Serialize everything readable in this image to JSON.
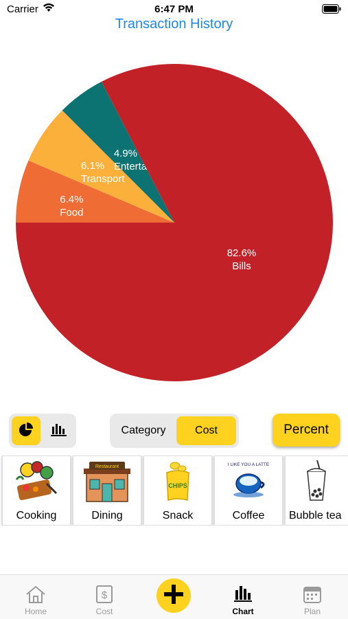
{
  "status": {
    "carrier": "Carrier",
    "time": "6:47 PM"
  },
  "header": {
    "title": "Transaction History"
  },
  "chart_data": {
    "type": "pie",
    "slices": [
      {
        "label": "Food",
        "value": 6.4,
        "display": "6.4%",
        "color": "#ef6c35"
      },
      {
        "label": "Transport",
        "value": 6.1,
        "display": "6.1%",
        "color": "#fbb03b"
      },
      {
        "label": "Entertainment",
        "value": 4.9,
        "display": "4.9%",
        "color": "#0d7372"
      },
      {
        "label": "Bills",
        "value": 82.6,
        "display": "82.6%",
        "color": "#c32128"
      }
    ]
  },
  "controls": {
    "chart_type": {
      "options": [
        "pie-chart-icon",
        "bar-chart-icon"
      ],
      "selected": "pie"
    },
    "sort": {
      "category": "Category",
      "cost": "Cost",
      "selected": "Cost"
    },
    "percent_label": "Percent"
  },
  "categories": [
    {
      "label": "Cooking",
      "icon": "cooking-icon"
    },
    {
      "label": "Dining",
      "icon": "restaurant-icon",
      "sign": "Restaurant"
    },
    {
      "label": "Snack",
      "icon": "chips-icon",
      "sign": "CHIPS"
    },
    {
      "label": "Coffee",
      "icon": "coffee-latte-icon",
      "sign": "I LIKE YOU A LATTE"
    },
    {
      "label": "Bubble tea",
      "icon": "bubble-tea-icon"
    }
  ],
  "tabs": [
    {
      "label": "Home",
      "icon": "home-icon"
    },
    {
      "label": "Cost",
      "icon": "dollar-icon"
    },
    {
      "label": "Chart",
      "icon": "bar-chart-icon",
      "active": true
    },
    {
      "label": "Plan",
      "icon": "calendar-icon"
    }
  ],
  "colors": {
    "accent": "#ffd21f",
    "title": "#1e88e5"
  }
}
